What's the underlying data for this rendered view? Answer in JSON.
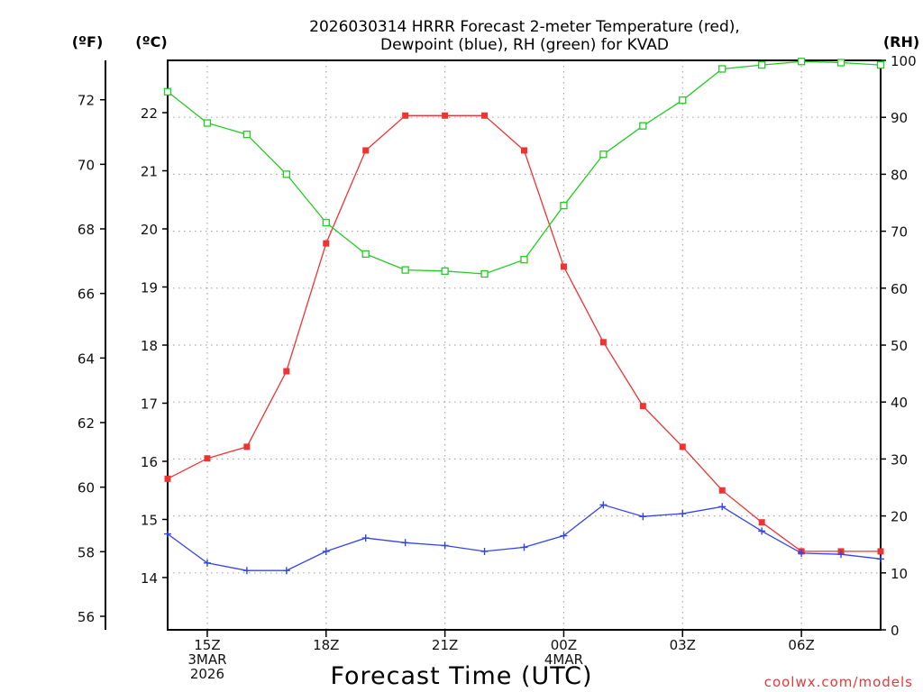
{
  "chart_data": {
    "type": "line",
    "title_line1": "2026030314 HRRR Forecast 2-meter Temperature (red),",
    "title_line2": "Dewpoint (blue), RH (green) for KVAD",
    "xlabel": "Forecast Time (UTC)",
    "credit": "coolwx.com/models",
    "units": {
      "fahrenheit": "(ºF)",
      "celsius": "(ºC)",
      "rh": "(RH)"
    },
    "x_hours": [
      14,
      15,
      16,
      17,
      18,
      19,
      20,
      21,
      22,
      23,
      24,
      25,
      26,
      27,
      28,
      29,
      30,
      31,
      32
    ],
    "x_ticks": [
      {
        "hour": 15,
        "lines": [
          "15Z",
          "3MAR",
          "2026"
        ]
      },
      {
        "hour": 18,
        "lines": [
          "18Z"
        ]
      },
      {
        "hour": 21,
        "lines": [
          "21Z"
        ]
      },
      {
        "hour": 24,
        "lines": [
          "00Z",
          "4MAR"
        ]
      },
      {
        "hour": 27,
        "lines": [
          "03Z"
        ]
      },
      {
        "hour": 30,
        "lines": [
          "06Z"
        ]
      }
    ],
    "xlim": [
      14,
      32
    ],
    "left_axis_c": {
      "ylim": [
        13.1,
        22.9
      ],
      "ticks": [
        14,
        15,
        16,
        17,
        18,
        19,
        20,
        21,
        22
      ]
    },
    "left_axis_f": {
      "ticks": [
        56,
        58,
        60,
        62,
        64,
        66,
        68,
        70,
        72
      ]
    },
    "right_axis_rh": {
      "ylim": [
        0,
        100
      ],
      "ticks": [
        0,
        10,
        20,
        30,
        40,
        50,
        60,
        70,
        80,
        90,
        100
      ]
    },
    "series": [
      {
        "name": "Temperature",
        "unit": "C",
        "color": "#ee3333",
        "marker": "filled-square",
        "values": [
          15.7,
          16.05,
          16.25,
          17.55,
          19.75,
          21.35,
          21.95,
          21.95,
          21.95,
          21.35,
          19.35,
          18.05,
          16.95,
          16.25,
          15.5,
          14.95,
          14.45,
          14.45,
          14.45
        ]
      },
      {
        "name": "Dewpoint",
        "unit": "C",
        "color": "#3344ee",
        "marker": "plus",
        "values": [
          14.75,
          14.25,
          14.12,
          14.12,
          14.45,
          14.68,
          14.6,
          14.55,
          14.45,
          14.52,
          14.72,
          15.25,
          15.05,
          15.1,
          15.22,
          14.8,
          14.42,
          14.4,
          14.32
        ]
      },
      {
        "name": "RH",
        "unit": "%",
        "color": "#22cc22",
        "marker": "open-square",
        "values": [
          94.5,
          89,
          87,
          80,
          71.5,
          66,
          63.2,
          63,
          62.5,
          65,
          74.5,
          83.5,
          88.5,
          93,
          98.5,
          99.2,
          99.8,
          99.6,
          99.2
        ]
      }
    ]
  }
}
